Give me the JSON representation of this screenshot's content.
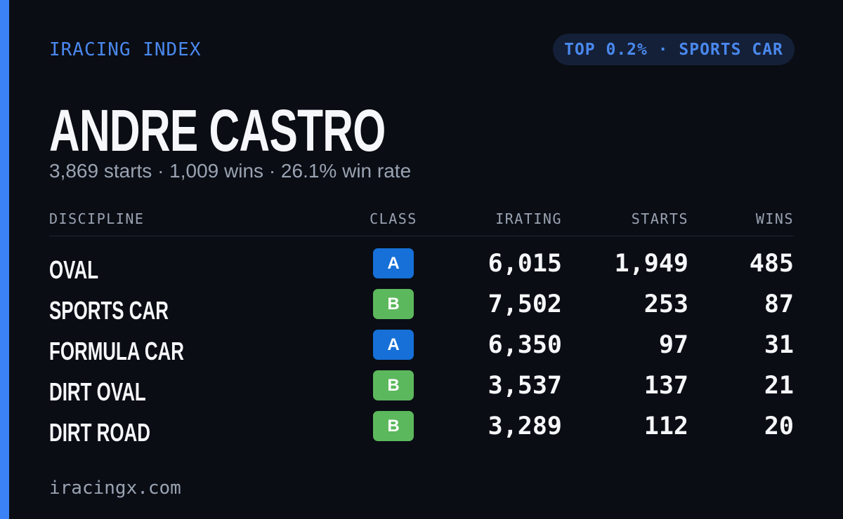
{
  "header": {
    "brand": "IRACING INDEX",
    "badge": "TOP 0.2% · SPORTS CAR"
  },
  "player": {
    "name": "ANDRE CASTRO",
    "summary": "3,869 starts · 1,009 wins · 26.1% win rate"
  },
  "table": {
    "columns": [
      "DISCIPLINE",
      "CLASS",
      "IRATING",
      "STARTS",
      "WINS"
    ],
    "rows": [
      [
        "OVAL",
        "A",
        "6,015",
        "1,949",
        "485"
      ],
      [
        "SPORTS CAR",
        "B",
        "7,502",
        "253",
        "87"
      ],
      [
        "FORMULA CAR",
        "A",
        "6,350",
        "97",
        "31"
      ],
      [
        "DIRT OVAL",
        "B",
        "3,537",
        "137",
        "21"
      ],
      [
        "DIRT ROAD",
        "B",
        "3,289",
        "112",
        "20"
      ]
    ],
    "class_colors": {
      "A": "#1670d8",
      "B": "#5cb85c"
    }
  },
  "footer": {
    "site": "iracingx.com"
  }
}
